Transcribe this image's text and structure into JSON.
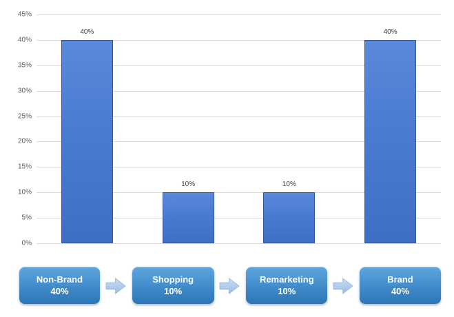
{
  "chart_data": {
    "type": "bar",
    "title": "",
    "xlabel": "",
    "ylabel": "",
    "categories": [
      "Non-Brand",
      "Shopping",
      "Remarketing",
      "Brand"
    ],
    "values": [
      40,
      10,
      10,
      40
    ],
    "data_labels": [
      "40%",
      "10%",
      "10%",
      "40%"
    ],
    "ylim": [
      0,
      45
    ],
    "ytick_values": [
      45,
      40,
      35,
      30,
      25,
      20,
      15,
      10,
      5,
      0
    ],
    "ytick_labels": [
      "45%",
      "40%",
      "35%",
      "30%",
      "25%",
      "20%",
      "15%",
      "10%",
      "5%",
      "0%"
    ],
    "grid": true,
    "legend": "none",
    "bar_color": "#4a7bd2",
    "bar_border_color": "#2f55a0",
    "gridline_color": "#d9d9d9"
  },
  "flow": {
    "nodes": [
      {
        "label": "Non-Brand",
        "value": "40%"
      },
      {
        "label": "Shopping",
        "value": "10%"
      },
      {
        "label": "Remarketing",
        "value": "10%"
      },
      {
        "label": "Brand",
        "value": "40%"
      }
    ],
    "arrow_icon": "right-arrow-icon",
    "node_color_top": "#5ea6dd",
    "node_color_bottom": "#2d75b6",
    "arrow_color": "#aac7e9"
  }
}
